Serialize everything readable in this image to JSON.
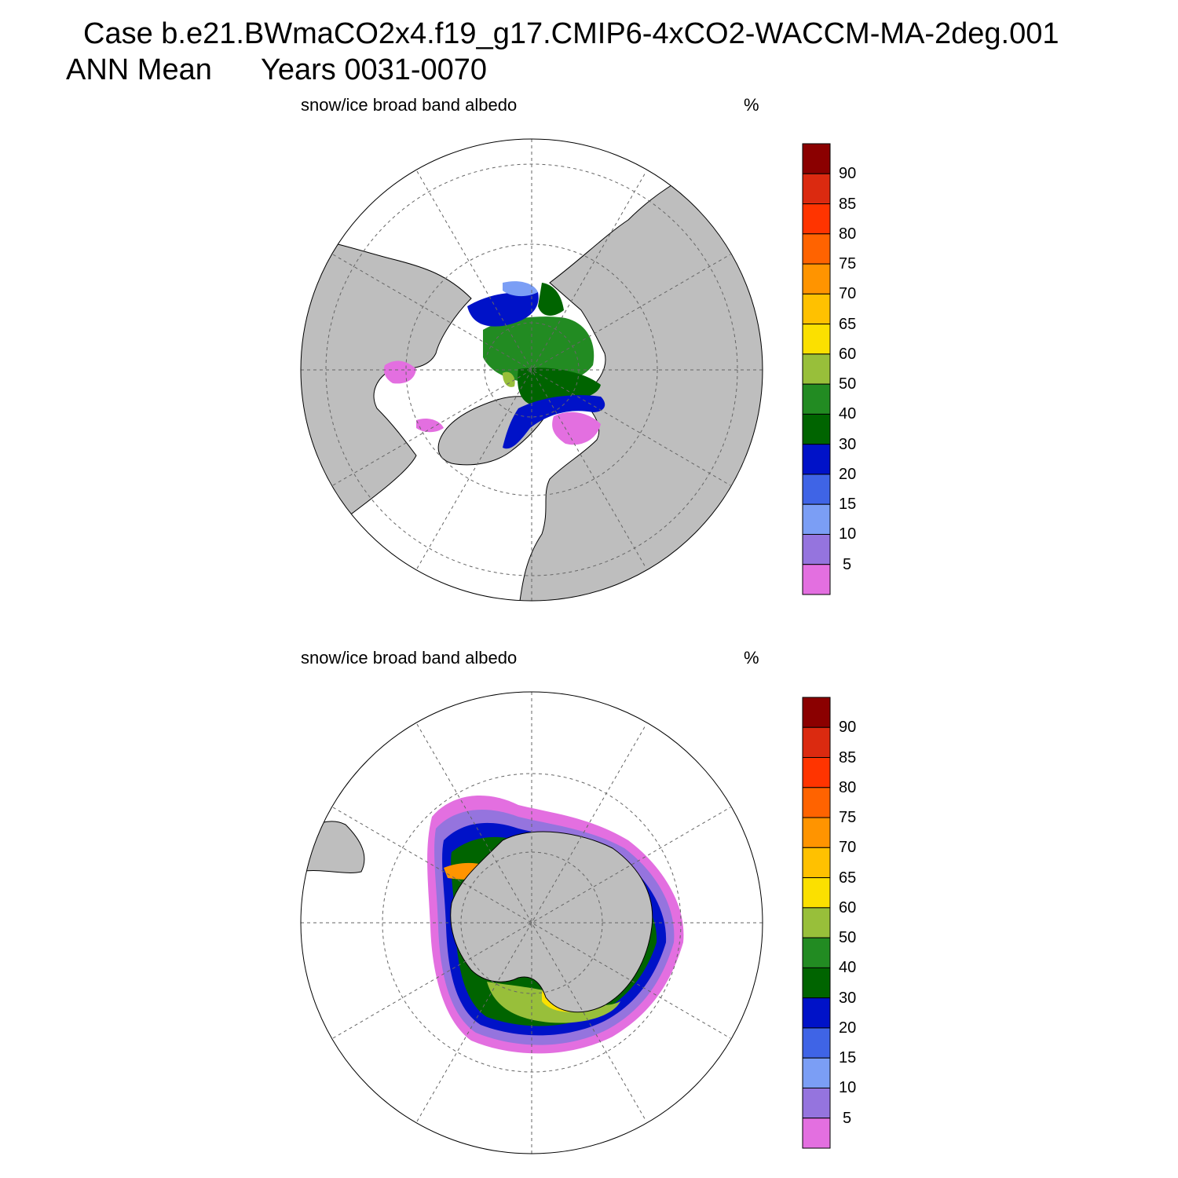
{
  "header": {
    "case_title": "Case b.e21.BWmaCO2x4.f19_g17.CMIP6-4xCO2-WACCM-MA-2deg.001",
    "season": "ANN Mean",
    "years": "Years 0031-0070"
  },
  "panels": [
    {
      "variable": "snow/ice broad band albedo",
      "units": "%"
    },
    {
      "variable": "snow/ice broad band albedo",
      "units": "%"
    }
  ],
  "colorbar": {
    "tick_labels": [
      "5",
      "10",
      "15",
      "20",
      "30",
      "40",
      "50",
      "60",
      "65",
      "70",
      "75",
      "80",
      "85",
      "90"
    ],
    "colors": [
      "#e36fe0",
      "#9574de",
      "#7b9ef5",
      "#3f64e6",
      "#0012c8",
      "#006400",
      "#228b22",
      "#98bf3a",
      "#fbe000",
      "#ffc100",
      "#ff9400",
      "#ff6300",
      "#ff3400",
      "#db2a10",
      "#8b0000"
    ]
  },
  "colors": {
    "land": "#bebebe",
    "ocean": "#ffffff",
    "grid": "#666666"
  }
}
